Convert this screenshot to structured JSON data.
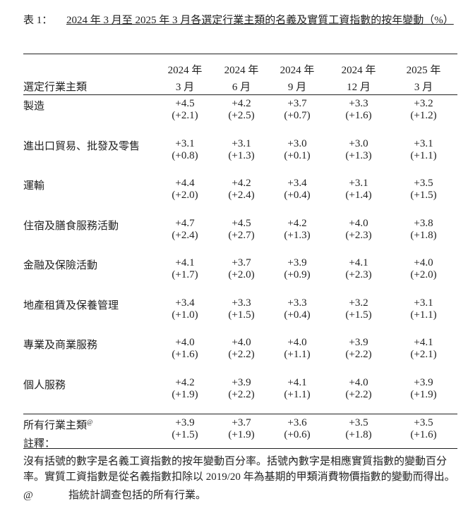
{
  "title": {
    "label": "表 1：",
    "text": "2024 年 3 月至 2025 年 3 月各選定行業主類的名義及實質工資指數的按年變動（%）"
  },
  "table": {
    "category_header": "選定行業主類",
    "columns": [
      {
        "year": "2024 年",
        "month": "3 月"
      },
      {
        "year": "2024 年",
        "month": "6 月"
      },
      {
        "year": "2024 年",
        "month": "9 月"
      },
      {
        "year": "2024 年",
        "month": "12 月"
      },
      {
        "year": "2025 年",
        "month": "3 月"
      }
    ],
    "rows": [
      {
        "name": "製造",
        "nominal": [
          "+4.5",
          "+4.2",
          "+3.7",
          "+3.3",
          "+3.2"
        ],
        "real": [
          "(+2.1)",
          "(+2.5)",
          "(+0.7)",
          "(+1.6)",
          "(+1.2)"
        ]
      },
      {
        "name": "進出口貿易、批發及零售",
        "nominal": [
          "+3.1",
          "+3.1",
          "+3.0",
          "+3.0",
          "+3.1"
        ],
        "real": [
          "(+0.8)",
          "(+1.3)",
          "(+0.1)",
          "(+1.3)",
          "(+1.1)"
        ]
      },
      {
        "name": "運輸",
        "nominal": [
          "+4.4",
          "+4.2",
          "+3.4",
          "+3.1",
          "+3.5"
        ],
        "real": [
          "(+2.0)",
          "(+2.4)",
          "(+0.4)",
          "(+1.4)",
          "(+1.5)"
        ]
      },
      {
        "name": "住宿及膳食服務活動",
        "nominal": [
          "+4.7",
          "+4.5",
          "+4.2",
          "+4.0",
          "+3.8"
        ],
        "real": [
          "(+2.4)",
          "(+2.7)",
          "(+1.3)",
          "(+2.3)",
          "(+1.8)"
        ]
      },
      {
        "name": "金融及保險活動",
        "nominal": [
          "+4.1",
          "+3.7",
          "+3.9",
          "+4.1",
          "+4.0"
        ],
        "real": [
          "(+1.7)",
          "(+2.0)",
          "(+0.9)",
          "(+2.3)",
          "(+2.0)"
        ]
      },
      {
        "name": "地產租賃及保養管理",
        "nominal": [
          "+3.4",
          "+3.3",
          "+3.3",
          "+3.2",
          "+3.1"
        ],
        "real": [
          "(+1.0)",
          "(+1.5)",
          "(+0.4)",
          "(+1.5)",
          "(+1.1)"
        ]
      },
      {
        "name": "專業及商業服務",
        "nominal": [
          "+4.0",
          "+4.0",
          "+4.0",
          "+3.9",
          "+4.1"
        ],
        "real": [
          "(+1.6)",
          "(+2.2)",
          "(+1.1)",
          "(+2.2)",
          "(+2.1)"
        ]
      },
      {
        "name": "個人服務",
        "nominal": [
          "+4.2",
          "+3.9",
          "+4.1",
          "+4.0",
          "+3.9"
        ],
        "real": [
          "(+1.9)",
          "(+2.2)",
          "(+1.1)",
          "(+2.2)",
          "(+1.9)"
        ]
      }
    ],
    "summary": {
      "name": "所有行業主類",
      "mark": "@",
      "nominal": [
        "+3.9",
        "+3.7",
        "+3.6",
        "+3.5",
        "+3.5"
      ],
      "real": [
        "(+1.5)",
        "(+1.9)",
        "(+0.6)",
        "(+1.8)",
        "(+1.6)"
      ]
    }
  },
  "notes": {
    "heading": "註釋：",
    "paragraph": "沒有括號的數字是名義工資指數的按年變動百分率。括號內數字是相應實質指數的變動百分率。實質工資指數是從名義指數扣除以 2019/20 年為基期的甲類消費物價指數的變動而得出。",
    "footnote_mark": "@",
    "footnote_text": "指統計調查包括的所有行業。"
  }
}
